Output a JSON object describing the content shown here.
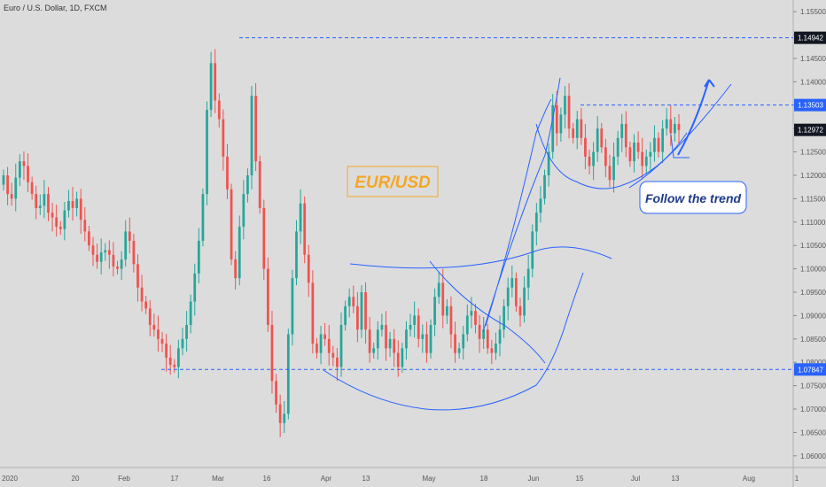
{
  "header": {
    "title": "Euro / U.S. Dollar, 1D, FXCM"
  },
  "annotations": {
    "badge": "EUR/USD",
    "callout": "Follow the trend"
  },
  "colors": {
    "up": "#26a69a",
    "down": "#ef5350",
    "background": "#dcdcdc",
    "draw": "#2962ff",
    "badge": "#f5a623"
  },
  "chart_data": {
    "type": "candlestick",
    "title": "Euro / U.S. Dollar, 1D, FXCM",
    "ylim": [
      1.0575,
      1.1575
    ],
    "y_ticks": [
      "1.15500",
      "1.15000",
      "1.14500",
      "1.14000",
      "1.13500",
      "1.13000",
      "1.12500",
      "1.12000",
      "1.11500",
      "1.11000",
      "1.10500",
      "1.10000",
      "1.09500",
      "1.09000",
      "1.08500",
      "1.08000",
      "1.07500",
      "1.07000",
      "1.06500",
      "1.06000"
    ],
    "x_ticks": [
      "2020",
      "20",
      "Feb",
      "17",
      "Mar",
      "16",
      "Apr",
      "13",
      "May",
      "18",
      "Jun",
      "15",
      "Jul",
      "13",
      "Aug",
      "1"
    ],
    "price_labels": [
      {
        "text": "1.14942",
        "value": 1.14942,
        "style": "dark"
      },
      {
        "text": "1.13503",
        "value": 1.13503,
        "style": "blue"
      },
      {
        "text": "1.12972",
        "value": 1.12972,
        "style": "dark"
      },
      {
        "text": "1.07847",
        "value": 1.07847,
        "style": "blue"
      }
    ],
    "horizontal_levels": [
      1.14942,
      1.13503,
      1.07847
    ],
    "series": [
      {
        "name": "EUR/USD",
        "closes": [
          1.12,
          1.116,
          1.115,
          1.1195,
          1.123,
          1.122,
          1.1185,
          1.116,
          1.113,
          1.1135,
          1.116,
          1.112,
          1.111,
          1.109,
          1.1085,
          1.1125,
          1.1145,
          1.113,
          1.115,
          1.1105,
          1.108,
          1.105,
          1.103,
          1.1015,
          1.1035,
          1.104,
          1.103,
          1.1005,
          1.1,
          1.102,
          1.108,
          1.106,
          1.101,
          1.096,
          1.093,
          1.0915,
          1.088,
          1.087,
          1.085,
          1.084,
          1.081,
          1.0795,
          1.079,
          1.083,
          1.085,
          1.088,
          1.093,
          1.099,
          1.106,
          1.116,
          1.134,
          1.144,
          1.136,
          1.132,
          1.124,
          1.117,
          1.102,
          1.098,
          1.109,
          1.116,
          1.12,
          1.137,
          1.123,
          1.113,
          1.1,
          1.088,
          1.076,
          1.071,
          1.067,
          1.069,
          1.086,
          1.098,
          1.108,
          1.114,
          1.103,
          1.097,
          1.084,
          1.082,
          1.086,
          1.085,
          1.082,
          1.081,
          1.079,
          1.088,
          1.092,
          1.094,
          1.092,
          1.087,
          1.095,
          1.087,
          1.082,
          1.083,
          1.087,
          1.088,
          1.083,
          1.085,
          1.082,
          1.079,
          1.083,
          1.087,
          1.088,
          1.09,
          1.085,
          1.086,
          1.082,
          1.088,
          1.094,
          1.097,
          1.09,
          1.092,
          1.086,
          1.082,
          1.083,
          1.086,
          1.09,
          1.091,
          1.088,
          1.085,
          1.087,
          1.083,
          1.082,
          1.084,
          1.087,
          1.092,
          1.096,
          1.098,
          1.092,
          1.09,
          1.096,
          1.1,
          1.108,
          1.112,
          1.115,
          1.12,
          1.125,
          1.135,
          1.129,
          1.133,
          1.137,
          1.13,
          1.128,
          1.132,
          1.128,
          1.124,
          1.122,
          1.125,
          1.13,
          1.126,
          1.122,
          1.119,
          1.124,
          1.128,
          1.131,
          1.126,
          1.123,
          1.127,
          1.125,
          1.122,
          1.124,
          1.125,
          1.128,
          1.125,
          1.13,
          1.132,
          1.129,
          1.131,
          1.1297
        ]
      }
    ]
  }
}
